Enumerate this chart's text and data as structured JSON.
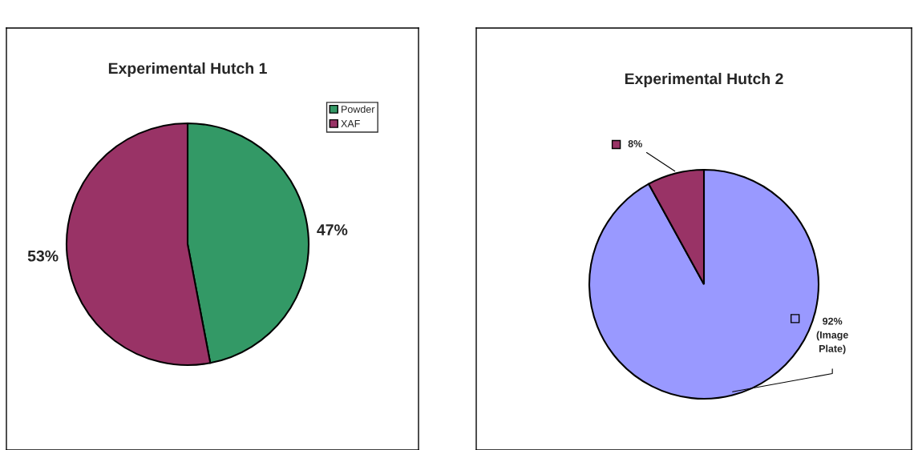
{
  "chart_data": [
    {
      "type": "pie",
      "title": "Experimental Hutch 1",
      "categories": [
        "Powder",
        "XAF"
      ],
      "values": [
        47,
        53
      ],
      "colors": [
        "#339966",
        "#993366"
      ],
      "value_labels": [
        "47%",
        "53%"
      ],
      "legend": "right"
    },
    {
      "type": "pie",
      "title": "Experimental Hutch 2",
      "categories": [
        "(Image Plate)",
        null
      ],
      "values": [
        92,
        8
      ],
      "colors": [
        "#9999ff",
        "#993366"
      ],
      "value_labels": [
        "92%",
        "8%"
      ]
    }
  ]
}
